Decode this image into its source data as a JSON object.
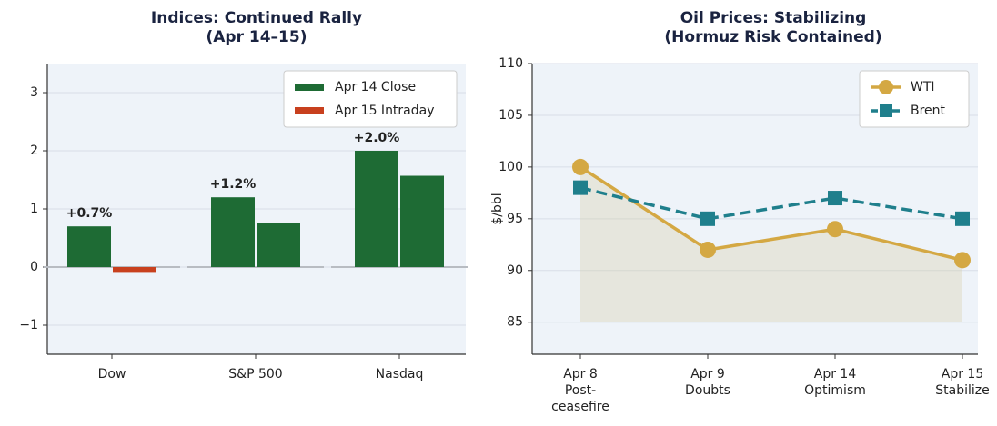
{
  "chart_data": [
    {
      "type": "bar",
      "title": "Indices: Continued Rally\n(Apr 14–15)",
      "categories": [
        "Dow",
        "S&P 500",
        "Nasdaq"
      ],
      "series": [
        {
          "name": "Apr 14 Close",
          "color": "#1e6b34",
          "values": [
            0.7,
            1.2,
            2.0
          ],
          "value_labels": [
            "+0.7%",
            "+1.2%",
            "+2.0%"
          ]
        },
        {
          "name": "Apr 15 Intraday",
          "color": "#c8401e",
          "colors": [
            "#c8401e",
            "#1e6b34",
            "#1e6b34"
          ],
          "values": [
            -0.1,
            0.75,
            1.57
          ]
        }
      ],
      "ylim": [
        -1.5,
        3.5
      ],
      "yticks": [
        {
          "value": -1,
          "label": "−1"
        },
        0,
        1,
        2,
        3
      ],
      "grid": true,
      "legend": "upper right"
    },
    {
      "type": "line",
      "title": "Oil Prices: Stabilizing\n(Hormuz Risk Contained)",
      "ylabel": "$/bbl",
      "categories": [
        "Apr 8\nPost-\nceasefire",
        "Apr 9\nDoubts",
        "Apr 14\nOptimism",
        "Apr 15\nStabilize"
      ],
      "series": [
        {
          "name": "WTI",
          "color": "#d4a843",
          "values": [
            100,
            92,
            94,
            91
          ],
          "marker": "circle",
          "dash": false
        },
        {
          "name": "Brent",
          "color": "#1f7f8c",
          "values": [
            98,
            95,
            97,
            95
          ],
          "marker": "square",
          "dash": true
        }
      ],
      "area_base": 85,
      "ylim": [
        81.9,
        110
      ],
      "yticks": [
        85,
        90,
        95,
        100,
        105,
        110
      ],
      "grid": true,
      "legend": "upper right"
    }
  ]
}
